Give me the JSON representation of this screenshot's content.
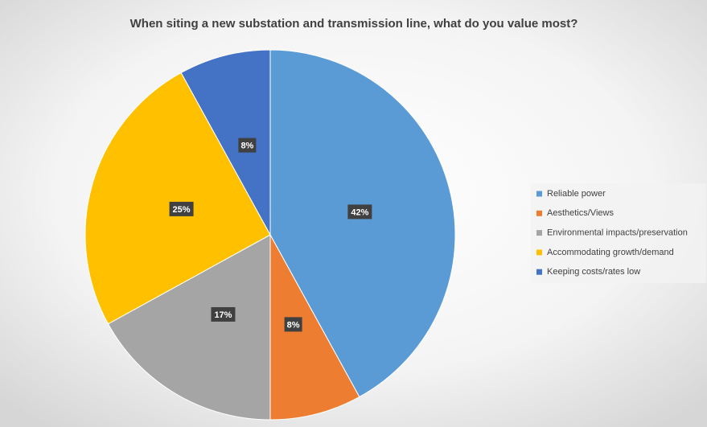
{
  "chart_data": {
    "type": "pie",
    "title": "When siting a new substation and transmission line, what do you value most?",
    "categories": [
      "Reliable power",
      "Aesthetics/Views",
      "Environmental impacts/preservation",
      "Accommodating growth/demand",
      "Keeping costs/rates low"
    ],
    "values": [
      42,
      8,
      17,
      25,
      8
    ],
    "value_labels": [
      "42%",
      "8%",
      "17%",
      "25%",
      "8%"
    ],
    "colors": [
      "#5b9bd5",
      "#ed7d31",
      "#a5a5a5",
      "#ffc000",
      "#4472c4"
    ],
    "legend": "right"
  }
}
